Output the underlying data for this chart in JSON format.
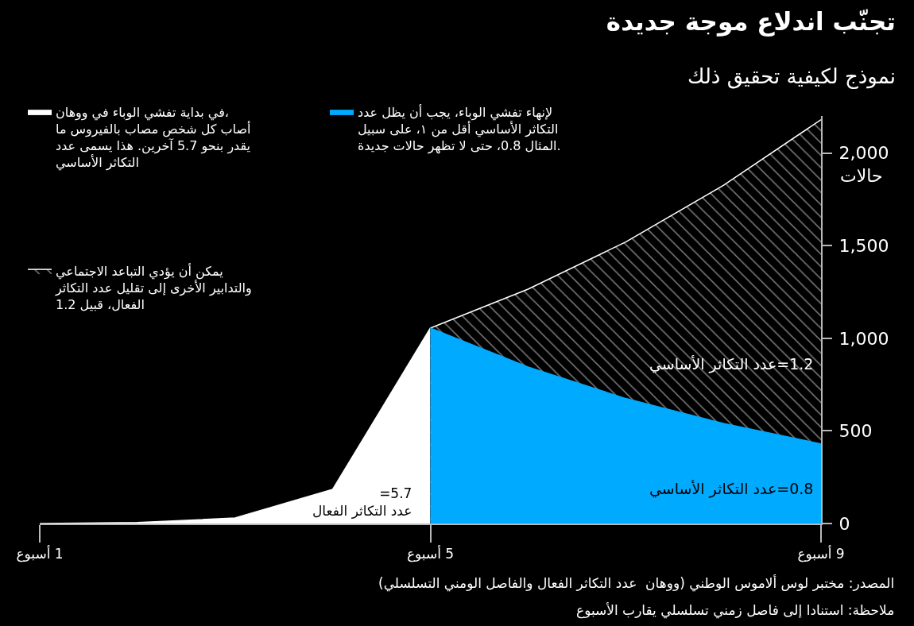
{
  "chart_data": {
    "type": "area",
    "title": "تجنّب اندلاع موجة جديدة",
    "subtitle": "نموذج لكيفية تحقيق ذلك",
    "ylabel": "حالات",
    "xlim": [
      1,
      9
    ],
    "xticks": [
      {
        "value": 1,
        "label": "1 أسبوع"
      },
      {
        "value": 5,
        "label": "5 أسبوع"
      },
      {
        "value": 9,
        "label": "9 أسبوع"
      }
    ],
    "ylim": [
      0,
      2200
    ],
    "yticks": [
      0,
      500,
      {
        "value": 1000,
        "label": "1,000"
      },
      {
        "value": 1500,
        "label": "1,500"
      },
      {
        "value": 2000,
        "label": "2,000"
      }
    ],
    "legend": "top left",
    "series": [
      {
        "name": "في بداية تفشي الوباء في ووهان،\nأصاب كل شخص مصاب بالفيروس ما\nيقدر بنحو 5.7 آخرين. هذا يسمى عدد\nالتكاثر الأساسي",
        "color": "#ffffff",
        "x": [
          1,
          2,
          3,
          4,
          5
        ],
        "values": [
          0,
          5,
          30,
          185,
          1055
        ]
      },
      {
        "name": "يمكن أن يؤدي التباعد الاجتماعي\nوالتدابير الأخرى إلى تقليل عدد التكاثر\nالفعال، قبيل 1.2",
        "color": "#ffffff",
        "x": [
          5,
          6,
          7,
          8,
          9
        ],
        "values": [
          1055,
          1265,
          1520,
          1825,
          2180
        ]
      },
      {
        "name": "لإنهاء تفشي الوباء، يجب أن يظل عدد\nالتكاثر الأساسي أقل من ١، على سبيل\nالمثال 0.8، حتى لا تظهر حالات جديدة.",
        "color": "#00aaff",
        "x": [
          5,
          6,
          7,
          8,
          9
        ],
        "values": [
          1055,
          845,
          675,
          540,
          430
        ]
      }
    ],
    "annotations": [
      "=5.7\nعدد التكاثر الفعال",
      "1.2=عدد التكاثر الأساسي",
      "0.8=عدد التكاثر الأساسي",
      "المصدر: مختبر لوس ألاموس الوطني (ووهان  عدد التكاثر الفعال والفاصل الومني التسلسلي)",
      "ملاحظة: استنادا إلى فاصل زمني تسلسلي يقارب الأسبوع"
    ]
  }
}
